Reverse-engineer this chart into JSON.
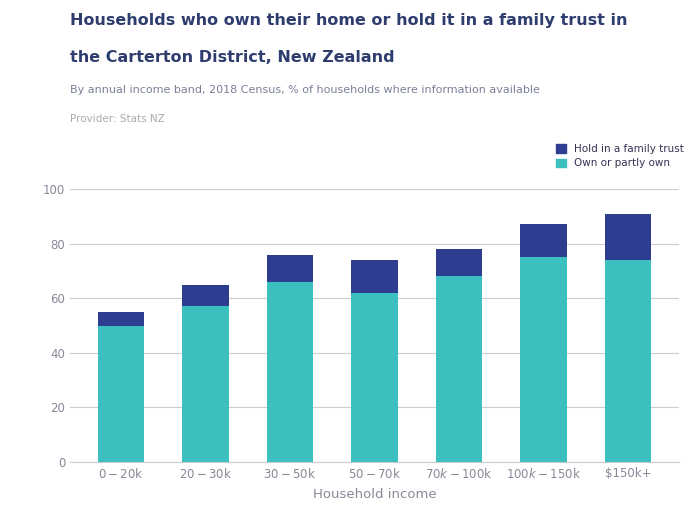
{
  "categories": [
    "$0-$20k",
    "$20-$30k",
    "$30-$50k",
    "$50-$70k",
    "$70k-$100k",
    "$100k-$150k",
    "$150k+"
  ],
  "own_partly_own": [
    50,
    57,
    66,
    62,
    68,
    75,
    74
  ],
  "family_trust": [
    5,
    8,
    10,
    12,
    10,
    12,
    17
  ],
  "color_own": "#3bbfbf",
  "color_trust": "#2e3d8f",
  "title_line1": "Households who own their home or hold it in a family trust in",
  "title_line2": "the Carterton District, New Zealand",
  "subtitle": "By annual income band, 2018 Census, % of households where information available",
  "provider": "Provider: Stats NZ",
  "xlabel": "Household income",
  "legend_trust": "Hold in a family trust",
  "legend_own": "Own or partly own",
  "ylim": [
    0,
    100
  ],
  "yticks": [
    0,
    20,
    40,
    60,
    80,
    100
  ],
  "background_color": "#ffffff",
  "title_color": "#2e3d6e",
  "subtitle_color": "#7a8098",
  "provider_color": "#aaaaaa",
  "axis_color": "#cccccc",
  "tick_color": "#888899",
  "logo_color": "#6b6bbf",
  "bar_width": 0.55,
  "figsize": [
    7.0,
    5.25
  ],
  "dpi": 100
}
